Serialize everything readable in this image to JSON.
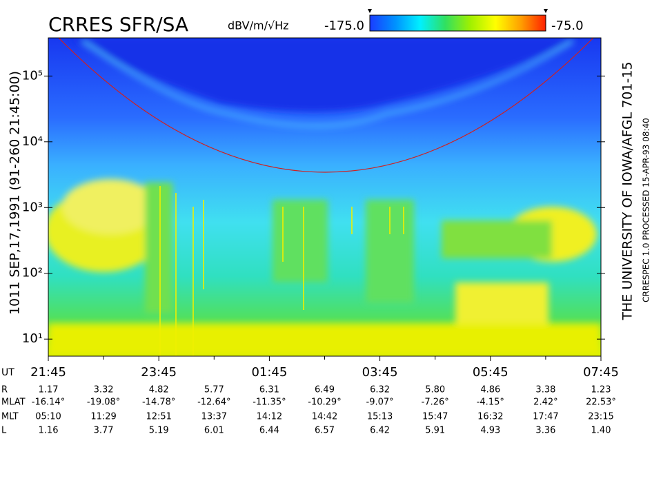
{
  "chart_data": {
    "type": "spectrogram",
    "title": "CRRES SFR/SA",
    "units": "dBV/m/√Hz",
    "colorbar": {
      "ticks": [
        {
          "value": -175,
          "label": "-175.0"
        },
        {
          "value": -75,
          "label": "-75.0"
        }
      ],
      "colors": [
        "#1a3cff",
        "#0090ff",
        "#00f0ff",
        "#30e060",
        "#a0f000",
        "#ffff00",
        "#ffa000",
        "#ff2000"
      ]
    },
    "y_scale": "log",
    "ylim": [
      5.5,
      380000
    ],
    "yticks": [
      {
        "value": 10,
        "label": "10¹"
      },
      {
        "value": 100,
        "label": "10²"
      },
      {
        "value": 1000,
        "label": "10³"
      },
      {
        "value": 10000,
        "label": "10⁴"
      },
      {
        "value": 100000,
        "label": "10⁵"
      }
    ],
    "xlim": [
      0,
      10
    ],
    "xticks": [
      {
        "value": 0,
        "label": "21:45"
      },
      {
        "value": 2,
        "label": "23:45"
      },
      {
        "value": 4,
        "label": "01:45"
      },
      {
        "value": 6,
        "label": "03:45"
      },
      {
        "value": 8,
        "label": "05:45"
      },
      {
        "value": 10,
        "label": "07:45"
      }
    ],
    "x_minor_ticks": [
      1,
      3,
      5,
      7,
      9
    ],
    "xlabel": "UT",
    "left_label": "1011   SEP,17,1991   (91-260 21:45:00)",
    "right_labels": [
      "THE UNIVERSITY OF IOWA/AFGL 701-15",
      "CRRESPEC 1.0   PROCESSED 15-APR-93  08:40"
    ],
    "ephemeris": [
      {
        "name": "R",
        "values": [
          "1.17",
          "3.32",
          "4.82",
          "5.77",
          "6.31",
          "6.49",
          "6.32",
          "5.80",
          "4.86",
          "3.38",
          "1.23"
        ]
      },
      {
        "name": "MLAT",
        "values": [
          "-16.14°",
          "-19.08°",
          "-14.78°",
          "-12.64°",
          "-11.35°",
          "-10.29°",
          "-9.07°",
          "-7.26°",
          "-4.15°",
          "2.42°",
          "22.53°"
        ]
      },
      {
        "name": "MLT",
        "values": [
          "05:10",
          "11:29",
          "12:51",
          "13:37",
          "14:12",
          "14:42",
          "15:13",
          "15:47",
          "16:32",
          "17:47",
          "23:15"
        ]
      },
      {
        "name": "L",
        "values": [
          "1.16",
          "3.77",
          "5.19",
          "6.01",
          "6.44",
          "6.57",
          "6.42",
          "5.91",
          "4.93",
          "3.36",
          "1.40"
        ]
      }
    ]
  }
}
